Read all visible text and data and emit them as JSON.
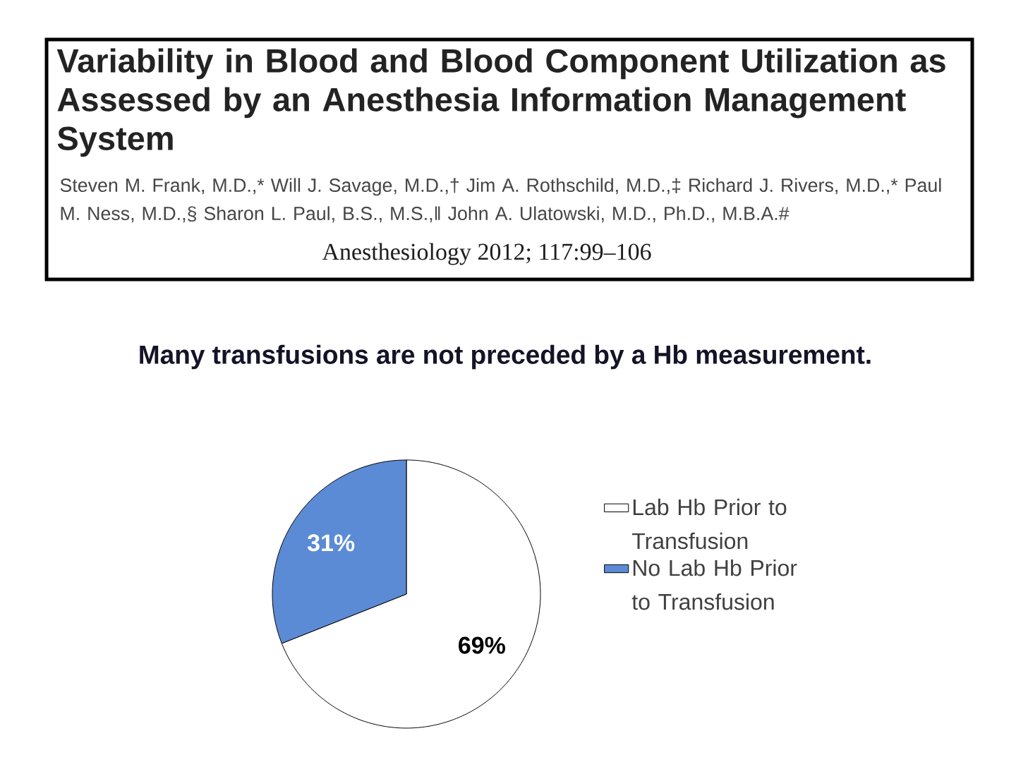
{
  "chart_data": {
    "type": "pie",
    "title": "Variability in Blood and Blood Component Utilization as Assessed by an Anesthesia Information Management System",
    "subtitle": "Many transfusions are not preceded by a Hb measurement.",
    "annotations": [
      "Steven M. Frank, M.D.,* Will J. Savage, M.D.,† Jim A. Rothschild, M.D.,‡ Richard J. Rivers, M.D.,* Paul M. Ness, M.D.,§ Sharon L. Paul, B.S., M.S.,‖ John A. Ulatowski, M.D., Ph.D., M.B.A.#",
      "Anesthesiology 2012; 117:99–106"
    ],
    "categories": [
      "Lab Hb Prior to Transfusion",
      "No Lab Hb Prior to Transfusion"
    ],
    "values": [
      69,
      31
    ],
    "colors": [
      "#ffffff",
      "#5b8bd4"
    ],
    "value_labels": [
      "69%",
      "31%"
    ],
    "legend": "right"
  }
}
